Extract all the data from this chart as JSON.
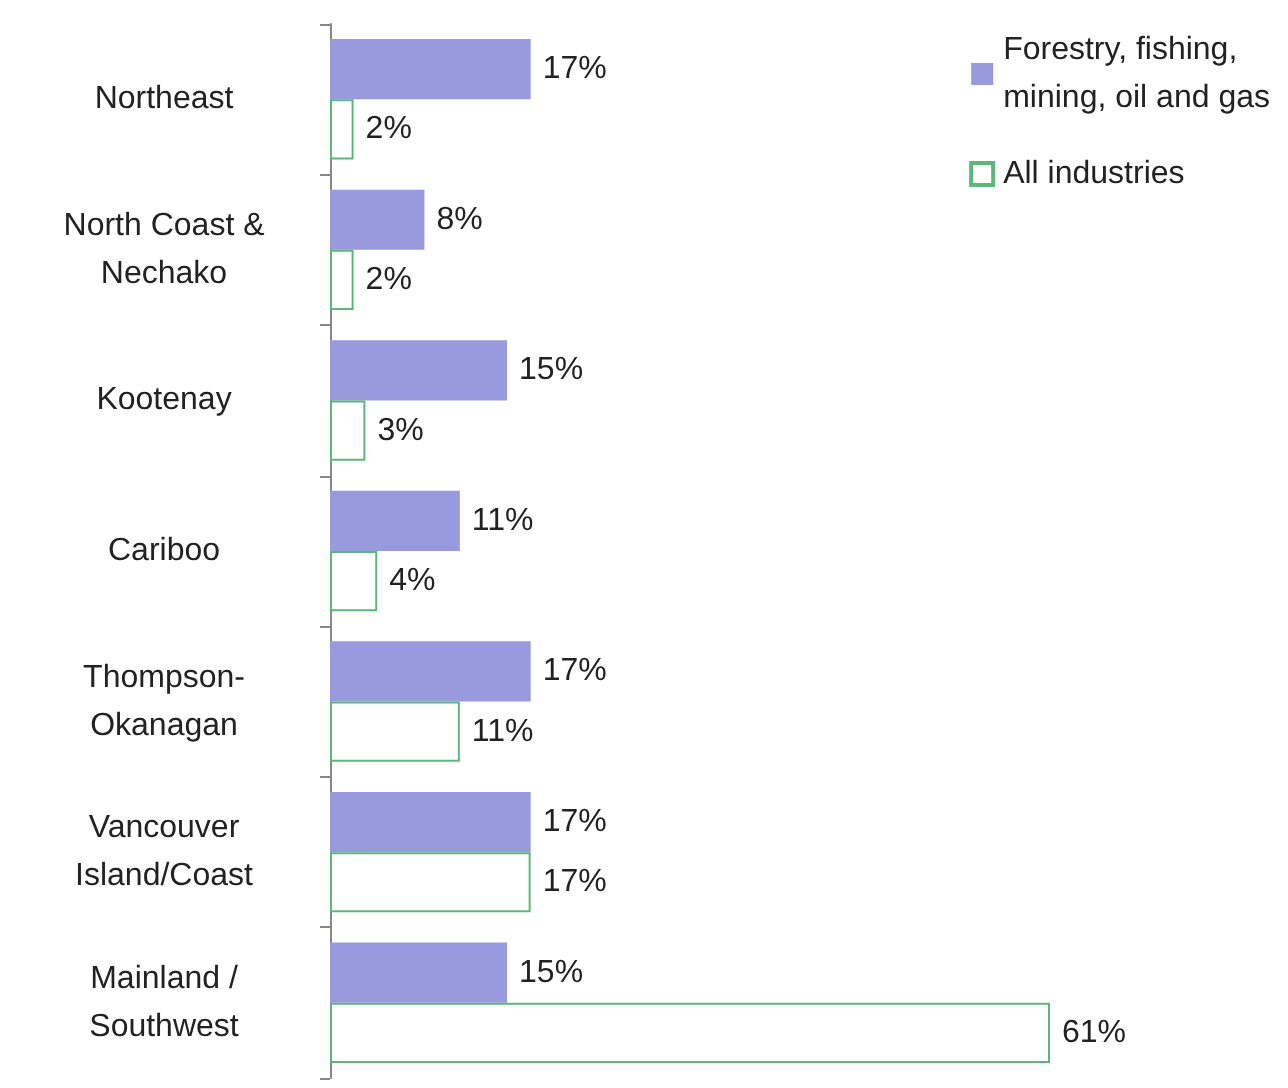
{
  "chart_data": {
    "type": "bar",
    "orientation": "horizontal",
    "categories": [
      "Northeast",
      "North Coast & Nechako",
      "Kootenay",
      "Cariboo",
      "Thompson-Okanagan",
      "Vancouver Island/Coast",
      "Mainland / Southwest"
    ],
    "series": [
      {
        "name": "Forestry, fishing, mining, oil and gas",
        "color": "#9999dd",
        "values": [
          17,
          8,
          15,
          11,
          17,
          17,
          15
        ],
        "value_labels": [
          "17%",
          "8%",
          "15%",
          "11%",
          "17%",
          "17%",
          "15%"
        ]
      },
      {
        "name": "All industries",
        "color": "#5cb87a",
        "values": [
          2,
          2,
          3,
          4,
          11,
          17,
          61
        ],
        "value_labels": [
          "2%",
          "2%",
          "3%",
          "4%",
          "11%",
          "17%",
          "61%"
        ]
      }
    ],
    "legend": "top right"
  }
}
